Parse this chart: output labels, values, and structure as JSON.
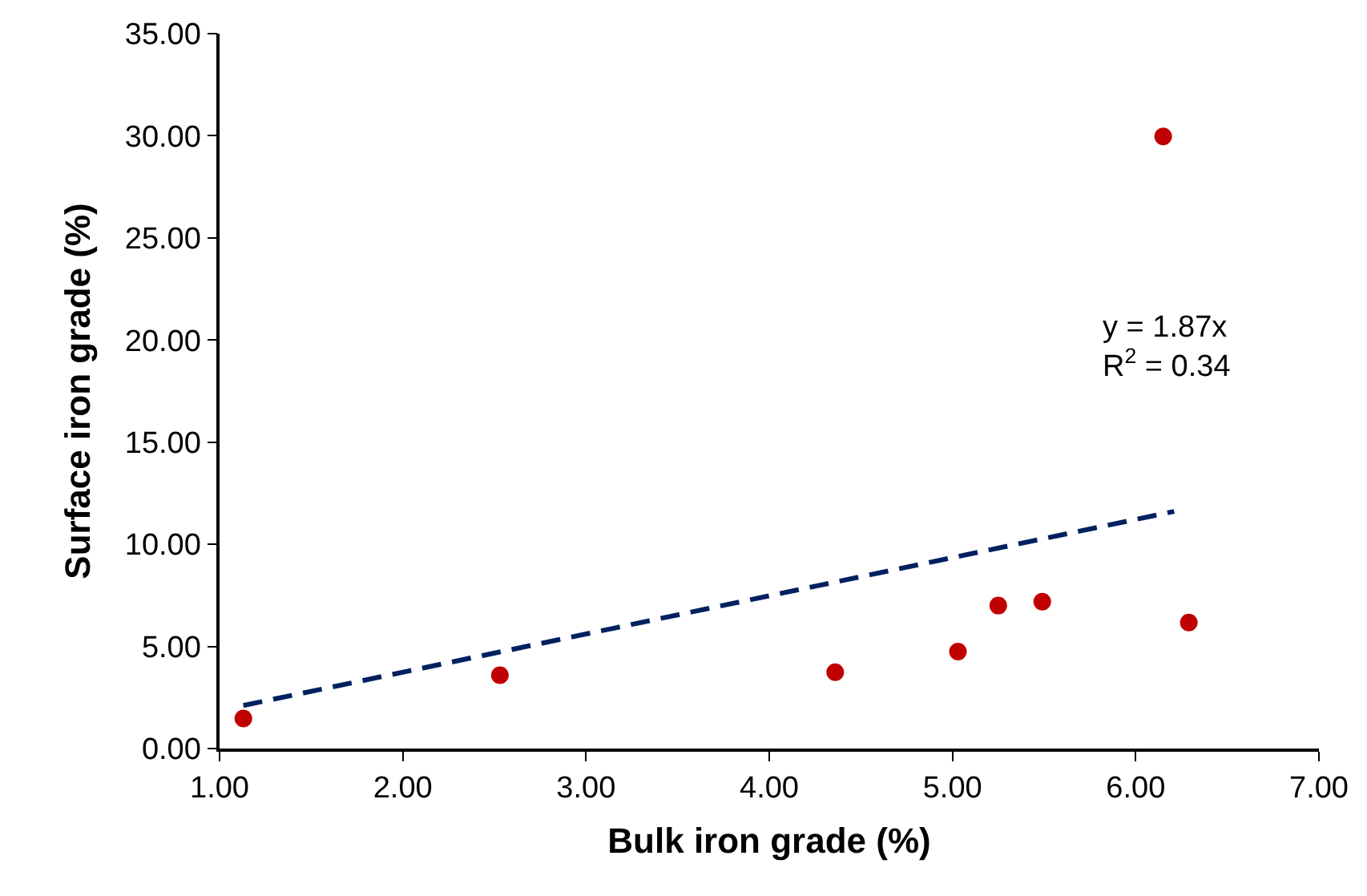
{
  "chart_data": {
    "type": "scatter",
    "xlabel": "Bulk iron grade (%)",
    "ylabel": "Surface iron grade (%)",
    "series": [
      {
        "color": "#c00000",
        "x": [
          1.13,
          2.53,
          4.36,
          5.03,
          5.25,
          5.49,
          6.15,
          6.29
        ],
        "values": [
          1.47,
          3.59,
          3.74,
          4.75,
          7.0,
          7.19,
          29.97,
          6.17
        ]
      },
      {
        "type": "line",
        "color": "#002060",
        "x": [
          1.13,
          6.21
        ],
        "values": [
          2.11,
          11.61
        ],
        "line_style": "dashed",
        "marker": "none"
      }
    ],
    "annotations": [
      "y = 1.87x\nR$^{2}$ = 0.34"
    ],
    "xlim": [
      1,
      7
    ],
    "xticks": [
      {
        "value": 1,
        "label": "1.00"
      },
      {
        "value": 2,
        "label": "2.00"
      },
      {
        "value": 3,
        "label": "3.00"
      },
      {
        "value": 4,
        "label": "4.00"
      },
      {
        "value": 5,
        "label": "5.00"
      },
      {
        "value": 6,
        "label": "6.00"
      },
      {
        "value": 7,
        "label": "7.00"
      }
    ],
    "ylim": [
      0,
      35
    ],
    "yticks": [
      {
        "value": 0,
        "label": "0.00"
      },
      {
        "value": 5,
        "label": "5.00"
      },
      {
        "value": 10,
        "label": "10.00"
      },
      {
        "value": 15,
        "label": "15.00"
      },
      {
        "value": 20,
        "label": "20.00"
      },
      {
        "value": 25,
        "label": "25.00"
      },
      {
        "value": 30,
        "label": "30.00"
      },
      {
        "value": 35,
        "label": "35.00"
      }
    ],
    "marker": "circle"
  }
}
